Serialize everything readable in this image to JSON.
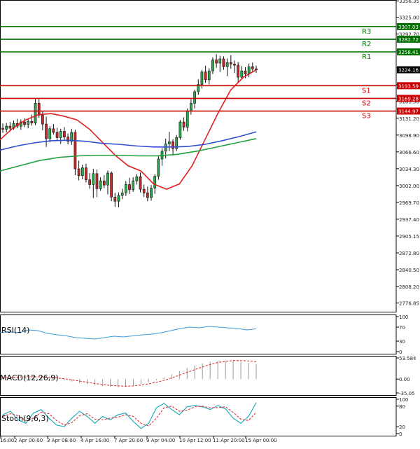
{
  "chart_data": [
    {
      "type": "candlestick",
      "panel": "price",
      "ylim": [
        2760,
        3358
      ],
      "y_ticks": [
        3356.35,
        3325.0,
        3292.7,
        3260.3,
        3228.4,
        3195.5,
        3163.5,
        3131.2,
        3098.9,
        3066.6,
        3034.3,
        3002.0,
        2969.7,
        2937.4,
        2905.15,
        2872.8,
        2840.5,
        2808.2,
        2776.85
      ],
      "x_ticks": [
        "16:00",
        "2 Apr 00:00",
        "3 Apr 08:00",
        "4 Apr 16:00",
        "7 Apr 20:00",
        "9 Apr 04:00",
        "10 Apr 12:00",
        "11 Apr 20:00",
        "15 Apr 00:00"
      ],
      "candles": [
        [
          3112,
          3121,
          3103,
          3110
        ],
        [
          3110,
          3122,
          3104,
          3116
        ],
        [
          3116,
          3124,
          3108,
          3112
        ],
        [
          3112,
          3127,
          3109,
          3121
        ],
        [
          3121,
          3130,
          3112,
          3116
        ],
        [
          3116,
          3129,
          3109,
          3124
        ],
        [
          3124,
          3131,
          3114,
          3119
        ],
        [
          3119,
          3131,
          3112,
          3125
        ],
        [
          3125,
          3138,
          3117,
          3122
        ],
        [
          3122,
          3168,
          3118,
          3160
        ],
        [
          3160,
          3170,
          3132,
          3137
        ],
        [
          3137,
          3145,
          3108,
          3120
        ],
        [
          3120,
          3134,
          3076,
          3092
        ],
        [
          3092,
          3116,
          3085,
          3111
        ],
        [
          3111,
          3120,
          3100,
          3104
        ],
        [
          3104,
          3113,
          3089,
          3094
        ],
        [
          3094,
          3111,
          3082,
          3106
        ],
        [
          3106,
          3114,
          3090,
          3095
        ],
        [
          3095,
          3102,
          3081,
          3087
        ],
        [
          3087,
          3111,
          3080,
          3104
        ],
        [
          3104,
          3109,
          3022,
          3034
        ],
        [
          3034,
          3050,
          3012,
          3021
        ],
        [
          3021,
          3042,
          3014,
          3036
        ],
        [
          3036,
          3044,
          3008,
          3013
        ],
        [
          3013,
          3026,
          2996,
          3004
        ],
        [
          3004,
          3034,
          2978,
          3025
        ],
        [
          3025,
          3033,
          2980,
          2996
        ],
        [
          2996,
          3018,
          2992,
          3011
        ],
        [
          3011,
          3022,
          2997,
          3003
        ],
        [
          3003,
          3031,
          2985,
          3026
        ],
        [
          3026,
          3029,
          2972,
          2980
        ],
        [
          2980,
          2988,
          2961,
          2972
        ],
        [
          2972,
          2989,
          2960,
          2983
        ],
        [
          2983,
          2996,
          2976,
          2988
        ],
        [
          2988,
          3011,
          2982,
          3004
        ],
        [
          3004,
          3017,
          2986,
          2994
        ],
        [
          2994,
          3018,
          2990,
          3011
        ],
        [
          3011,
          3024,
          3004,
          3019
        ],
        [
          3019,
          3027,
          2989,
          2995
        ],
        [
          2995,
          3004,
          2980,
          2988
        ],
        [
          2988,
          3000,
          2972,
          2979
        ],
        [
          2979,
          3003,
          2973,
          2997
        ],
        [
          2997,
          3024,
          2986,
          3020
        ],
        [
          3020,
          3060,
          3013,
          3053
        ],
        [
          3053,
          3074,
          3040,
          3068
        ],
        [
          3068,
          3092,
          3054,
          3082
        ],
        [
          3082,
          3105,
          3068,
          3086
        ],
        [
          3086,
          3091,
          3060,
          3073
        ],
        [
          3073,
          3099,
          3068,
          3094
        ],
        [
          3094,
          3128,
          3090,
          3124
        ],
        [
          3124,
          3133,
          3107,
          3114
        ],
        [
          3114,
          3150,
          3106,
          3145
        ],
        [
          3145,
          3168,
          3138,
          3160
        ],
        [
          3160,
          3186,
          3150,
          3182
        ],
        [
          3182,
          3206,
          3176,
          3196
        ],
        [
          3196,
          3224,
          3188,
          3220
        ],
        [
          3220,
          3232,
          3199,
          3205
        ],
        [
          3205,
          3227,
          3196,
          3222
        ],
        [
          3222,
          3248,
          3216,
          3243
        ],
        [
          3243,
          3254,
          3228,
          3237
        ],
        [
          3237,
          3251,
          3220,
          3245
        ],
        [
          3245,
          3250,
          3224,
          3230
        ],
        [
          3230,
          3246,
          3212,
          3238
        ],
        [
          3238,
          3252,
          3226,
          3235
        ],
        [
          3235,
          3242,
          3218,
          3233
        ],
        [
          3233,
          3239,
          3200,
          3210
        ],
        [
          3210,
          3231,
          3206,
          3222
        ],
        [
          3222,
          3229,
          3208,
          3216
        ],
        [
          3216,
          3236,
          3210,
          3230
        ],
        [
          3230,
          3238,
          3220,
          3226
        ],
        [
          3226,
          3232,
          3218,
          3224
        ]
      ],
      "series": [
        {
          "name": "",
          "color": "#e02020",
          "values": [
            3090,
            3112,
            3128,
            3138,
            3140,
            3135,
            3128,
            3110,
            3085,
            3060,
            3040,
            3030,
            3005,
            2995,
            3005,
            3040,
            3090,
            3140,
            3185,
            3210,
            3224
          ]
        },
        {
          "name": "",
          "color": "#3050d0",
          "values": [
            3070,
            3078,
            3084,
            3088,
            3089,
            3087,
            3083,
            3081,
            3078,
            3076,
            3076,
            3077,
            3081,
            3088,
            3096,
            3105
          ]
        },
        {
          "name": "",
          "color": "#20a040",
          "values": [
            3030,
            3040,
            3050,
            3056,
            3059,
            3060,
            3060,
            3059,
            3059,
            3062,
            3068,
            3076,
            3084,
            3092
          ]
        }
      ],
      "levels": [
        {
          "label": "R3",
          "value": 3307.03,
          "color": "#007000"
        },
        {
          "label": "R2",
          "value": 3282.72,
          "color": "#007000"
        },
        {
          "label": "R1",
          "value": 3258.41,
          "color": "#007000"
        },
        {
          "label": "S1",
          "value": 3193.59,
          "color": "#cc0000"
        },
        {
          "label": "S2",
          "value": 3169.28,
          "color": "#cc0000"
        },
        {
          "label": "S3",
          "value": 3144.97,
          "color": "#cc0000"
        }
      ],
      "current_price": 3224.16
    },
    {
      "type": "line",
      "panel": "rsi",
      "title": "RSI(14)",
      "ylim": [
        0,
        100
      ],
      "y_ticks": [
        100,
        70,
        30,
        0
      ],
      "series": [
        {
          "name": "RSI(14)",
          "color": "#3a9ad9",
          "values": [
            55,
            57,
            54,
            62,
            60,
            52,
            48,
            45,
            40,
            38,
            36,
            40,
            44,
            42,
            45,
            48,
            50,
            54,
            60,
            66,
            70,
            68,
            72,
            70,
            68,
            66,
            62,
            65
          ]
        }
      ]
    },
    {
      "type": "bar",
      "panel": "macd",
      "title": "MACD(12,26,9)",
      "ylim": [
        -35.05,
        53.584
      ],
      "y_ticks": [
        53.584,
        0.0,
        -35.05
      ],
      "histogram": [
        4,
        5,
        6,
        7,
        8,
        6,
        3,
        0,
        -3,
        -6,
        -10,
        -13,
        -16,
        -18,
        -19,
        -20,
        -19,
        -16,
        -12,
        -8,
        -3,
        4,
        12,
        20,
        28,
        35,
        40,
        44,
        46,
        47,
        46,
        44,
        41,
        38
      ],
      "signal": [
        3,
        4,
        5,
        6,
        6,
        6,
        5,
        3,
        1,
        -2,
        -5,
        -8,
        -11,
        -14,
        -16,
        -17,
        -18,
        -17,
        -15,
        -12,
        -8,
        -3,
        3,
        10,
        17,
        24,
        31,
        37,
        42,
        45,
        47,
        47,
        46,
        44
      ]
    },
    {
      "type": "line",
      "panel": "stoch",
      "title": "Stoch(9,6,3)",
      "ylim": [
        0,
        100
      ],
      "y_ticks": [
        100,
        80,
        20,
        0
      ],
      "series": [
        {
          "name": "",
          "color": "#10a8b8",
          "values": [
            55,
            65,
            40,
            30,
            60,
            70,
            45,
            25,
            20,
            45,
            65,
            50,
            30,
            50,
            40,
            55,
            60,
            35,
            15,
            30,
            75,
            88,
            70,
            55,
            78,
            82,
            78,
            70,
            82,
            72,
            45,
            30,
            50,
            90
          ]
        },
        {
          "name": "",
          "color": "#e03030",
          "values": [
            50,
            58,
            52,
            38,
            45,
            62,
            58,
            38,
            25,
            32,
            52,
            58,
            42,
            40,
            45,
            48,
            55,
            50,
            30,
            22,
            45,
            75,
            80,
            65,
            68,
            78,
            80,
            75,
            76,
            78,
            62,
            42,
            38,
            62
          ]
        }
      ]
    }
  ]
}
